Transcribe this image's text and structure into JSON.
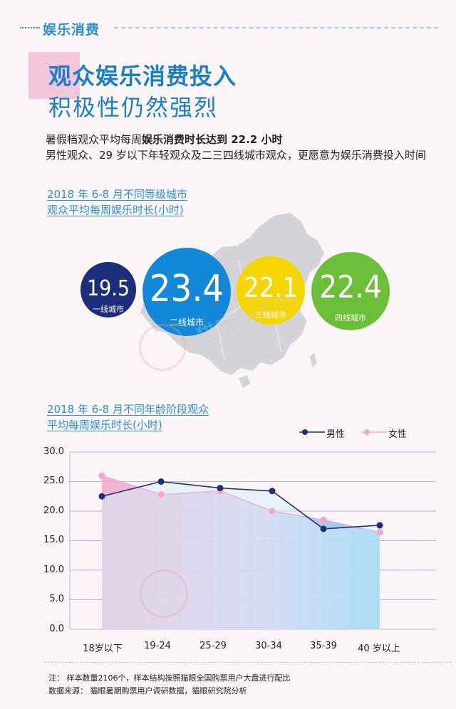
{
  "section_tag": "娱乐消费",
  "headline": {
    "line1": "观众娱乐消费投入",
    "line2": "积极性仍然强烈"
  },
  "summary": {
    "line1_prefix": "暑假档观众平均每周",
    "line1_bold": "娱乐消费时长达到 22.2 小时",
    "line2": "男性观众、29 岁以下年轻观众及二三四线城市观众，更愿意为娱乐消费投入时间"
  },
  "city_section": {
    "title_line1": "2018 年 6-8 月不同等级城市",
    "title_line2": "观众平均每周娱乐时长(小时)",
    "bubbles": [
      {
        "value": "19.5",
        "label": "一线城市",
        "color": "#1c2d7a"
      },
      {
        "value": "23.4",
        "label": "二线城市",
        "color": "#1488d8"
      },
      {
        "value": "22.1",
        "label": "三线城市",
        "color": "#f7d600"
      },
      {
        "value": "22.4",
        "label": "四线城市",
        "color": "#6bbf38"
      }
    ]
  },
  "watermark": "猫眼研究院",
  "chart_data": {
    "type": "line",
    "title_line1": "2018 年 6-8 月不同年龄阶段观众",
    "title_line2": "平均每周娱乐时长(小时)",
    "categories": [
      "18岁以下",
      "19-24",
      "25-29",
      "30-34",
      "35-39",
      "40 岁以上"
    ],
    "series": [
      {
        "name": "男性",
        "values": [
          22.5,
          25.0,
          23.9,
          23.4,
          17.0,
          17.6
        ],
        "color": "#1c2d7a"
      },
      {
        "name": "女性",
        "values": [
          26.0,
          22.8,
          23.4,
          20.0,
          18.5,
          16.4
        ],
        "color": "#f0a8c8"
      }
    ],
    "ylim": [
      0,
      30
    ],
    "yticks": [
      "0.0",
      "5.0",
      "10.0",
      "15.0",
      "20.0",
      "25.0",
      "30.0"
    ],
    "grid": true,
    "legend_position": "top-right"
  },
  "footnote": {
    "line1": "注：  样本数量2106个，样本结构按照猫眼全国购票用户大盘进行配比",
    "line2": "数据来源：  猫眼暑期购票用户调研数据，猫眼研究院分析"
  }
}
